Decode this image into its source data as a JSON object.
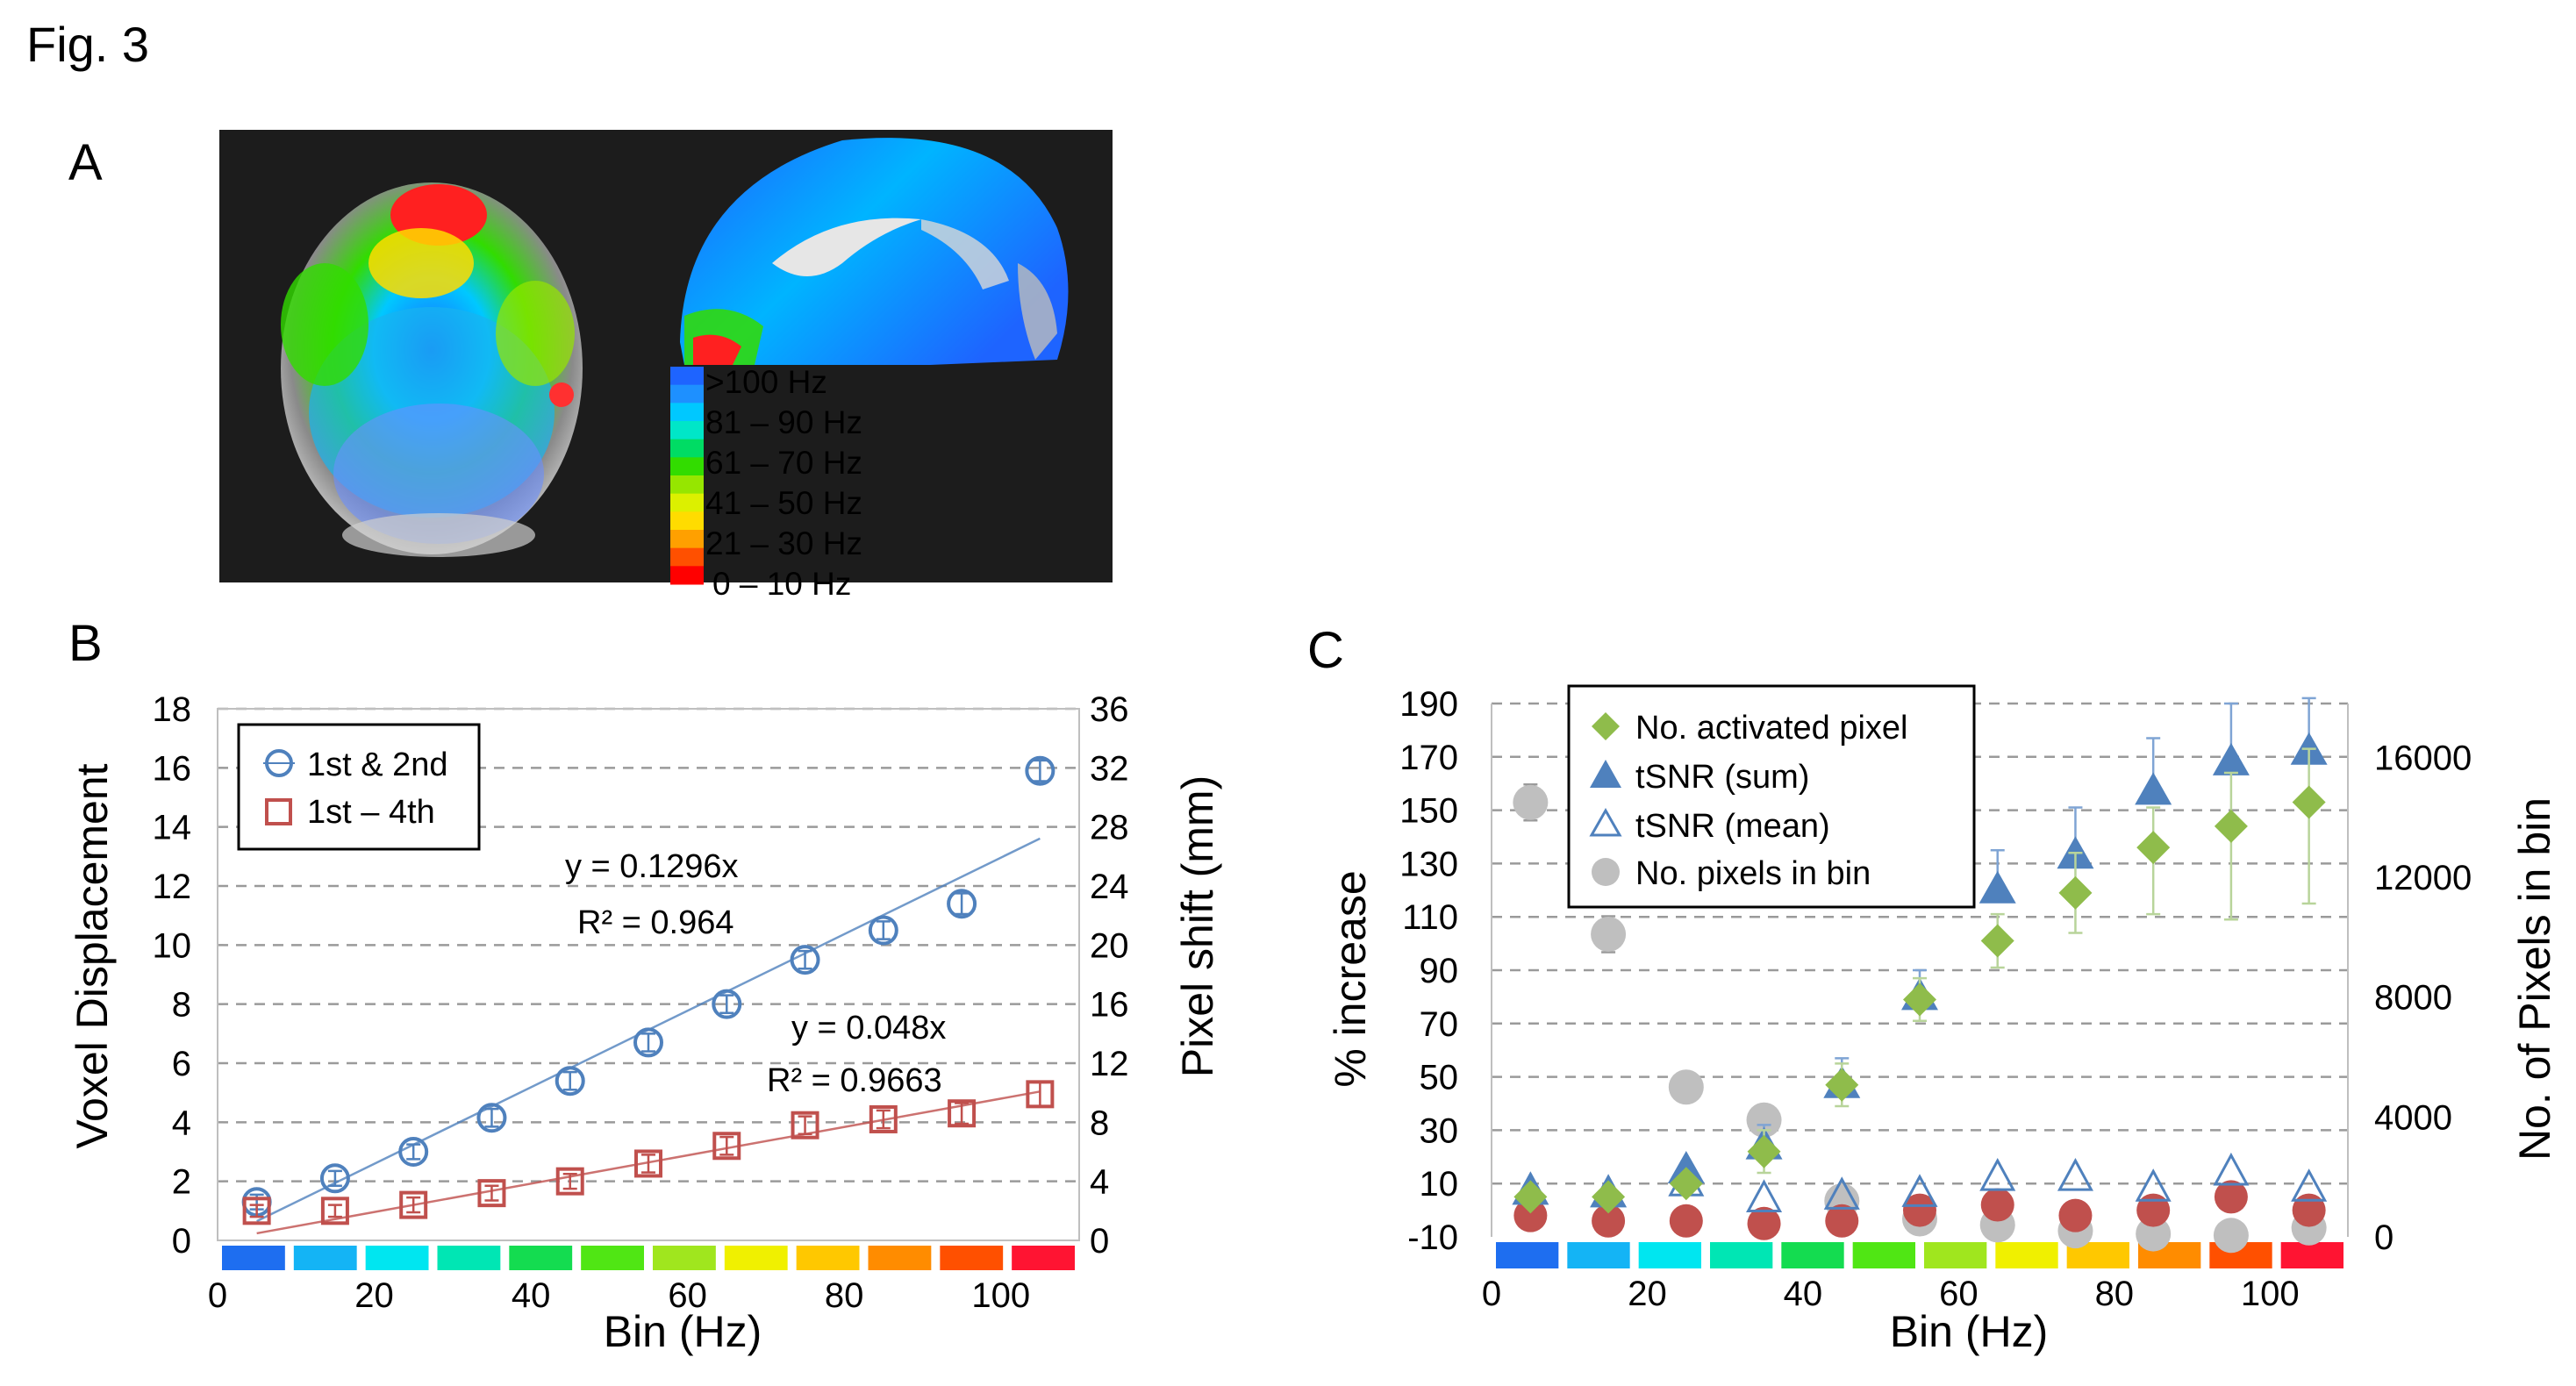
{
  "figure_title": "Fig. 3",
  "panels": {
    "a": {
      "letter": "A",
      "colorbar": {
        "colors": [
          "#1e64ff",
          "#1e90ff",
          "#00c8ff",
          "#00e6c8",
          "#00dc64",
          "#32dc00",
          "#96e600",
          "#dcf000",
          "#ffdc00",
          "#ffa000",
          "#ff5000",
          "#ff0000"
        ],
        "labels": [
          ">100 Hz",
          "81 – 90 Hz",
          "61 – 70 Hz",
          "41 – 50 Hz",
          "21 – 30 Hz",
          "0 – 10 Hz"
        ]
      }
    },
    "b": {
      "letter": "B"
    },
    "c": {
      "letter": "C"
    }
  },
  "bin_strip_colors": [
    "#1e6ef0",
    "#14b4f5",
    "#00e6f0",
    "#00e6b4",
    "#14dc50",
    "#50e614",
    "#a0e61e",
    "#f0f000",
    "#ffc800",
    "#ff8c00",
    "#ff5000",
    "#ff1432"
  ],
  "chart_data": [
    {
      "type": "scatter",
      "id": "B",
      "xlabel": "Bin (Hz)",
      "ylabel": "Voxel Displacement",
      "y2label": "Pixel shift (mm)",
      "xlim": [
        0,
        110
      ],
      "ylim": [
        0,
        18
      ],
      "y2lim": [
        0,
        36
      ],
      "xticks": [
        "0",
        "20",
        "40",
        "60",
        "80",
        "100"
      ],
      "yticks": [
        "0",
        "2",
        "4",
        "6",
        "8",
        "10",
        "12",
        "14",
        "16",
        "18"
      ],
      "y2ticks": [
        "0",
        "4",
        "8",
        "12",
        "16",
        "20",
        "24",
        "28",
        "32",
        "36"
      ],
      "grid": "horizontal dashed",
      "legend": [
        "1st & 2nd",
        "1st – 4th"
      ],
      "x": [
        5,
        15,
        25,
        35,
        45,
        55,
        65,
        75,
        85,
        95,
        105
      ],
      "series": [
        {
          "name": "1st & 2nd",
          "marker": "circle",
          "color": "#4f81bd",
          "values": [
            1.3,
            2.1,
            3.0,
            4.15,
            5.4,
            6.7,
            8.0,
            9.5,
            10.5,
            11.4,
            15.9
          ],
          "errors": [
            0.25,
            0.25,
            0.25,
            0.3,
            0.3,
            0.3,
            0.3,
            0.3,
            0.3,
            0.35,
            0.35
          ],
          "fit": {
            "slope": 0.1296,
            "equation": "y = 0.1296x",
            "r2": "R² = 0.964"
          }
        },
        {
          "name": "1st – 4th",
          "marker": "square",
          "color": "#c0504d",
          "values": [
            1.0,
            1.0,
            1.2,
            1.6,
            2.0,
            2.6,
            3.2,
            3.9,
            4.1,
            4.3,
            4.95
          ],
          "errors": [
            0.2,
            0.2,
            0.25,
            0.25,
            0.25,
            0.3,
            0.3,
            0.3,
            0.3,
            0.35,
            0.4
          ],
          "fit": {
            "slope": 0.048,
            "equation": "y = 0.048x",
            "r2": "R² = 0.9663"
          }
        }
      ]
    },
    {
      "type": "scatter",
      "id": "C",
      "xlabel": "Bin (Hz)",
      "ylabel": "% increase",
      "y2label": "No. of Pixels in bin",
      "xlim": [
        0,
        110
      ],
      "ylim": [
        -10,
        190
      ],
      "y2lim": [
        0,
        17800
      ],
      "xticks": [
        "0",
        "20",
        "40",
        "60",
        "80",
        "100"
      ],
      "yticks": [
        "-10",
        "10",
        "30",
        "50",
        "70",
        "90",
        "110",
        "130",
        "150",
        "170",
        "190"
      ],
      "y2ticks": [
        "0",
        "4000",
        "8000",
        "12000",
        "16000"
      ],
      "grid": "horizontal dashed",
      "legend": [
        "No. activated pixel",
        "tSNR (sum)",
        "tSNR (mean)",
        "No. pixels in bin"
      ],
      "x": [
        5,
        15,
        25,
        35,
        45,
        55,
        65,
        75,
        85,
        95,
        105
      ],
      "series": [
        {
          "name": "No. activated pixel",
          "marker": "diamond",
          "color": "#8fbc4b",
          "axis": "left",
          "values": [
            5,
            5,
            10,
            22,
            47,
            79,
            101,
            119,
            136,
            144,
            153
          ],
          "errors_up": [
            0,
            0,
            0,
            8,
            8,
            8,
            10,
            15,
            15,
            20,
            20
          ],
          "errors_down": [
            0,
            0,
            0,
            8,
            8,
            8,
            10,
            15,
            25,
            35,
            38
          ]
        },
        {
          "name": "tSNR (sum)",
          "marker": "triangle",
          "color": "#4f81bd",
          "axis": "left",
          "values": [
            7,
            6,
            15,
            24,
            47,
            80,
            120,
            133,
            157,
            168,
            172
          ],
          "errors_up": [
            0,
            0,
            0,
            8,
            10,
            10,
            15,
            18,
            20,
            22,
            20
          ],
          "errors_down": [
            0,
            0,
            0,
            0,
            0,
            0,
            0,
            0,
            0,
            0,
            0
          ]
        },
        {
          "name": "tSNR (mean)",
          "marker": "triangle-open",
          "color": "#4f81bd",
          "axis": "left",
          "values": [
            7,
            6,
            10,
            4,
            5,
            6,
            12,
            12,
            8,
            14,
            8
          ]
        },
        {
          "name": "red series (unlabeled)",
          "marker": "circle",
          "color": "#c0504d",
          "axis": "left",
          "values": [
            -2,
            -4,
            -4,
            -5,
            -4,
            0,
            2,
            -2,
            0,
            5,
            0
          ]
        },
        {
          "name": "No. pixels in bin",
          "marker": "circle",
          "color": "#bfbfbf",
          "axis": "right",
          "values": [
            14500,
            10100,
            5000,
            3900,
            1200,
            600,
            400,
            200,
            100,
            50,
            300
          ],
          "errors": [
            600,
            600,
            0,
            0,
            0,
            0,
            0,
            0,
            0,
            0,
            0
          ]
        }
      ]
    }
  ]
}
